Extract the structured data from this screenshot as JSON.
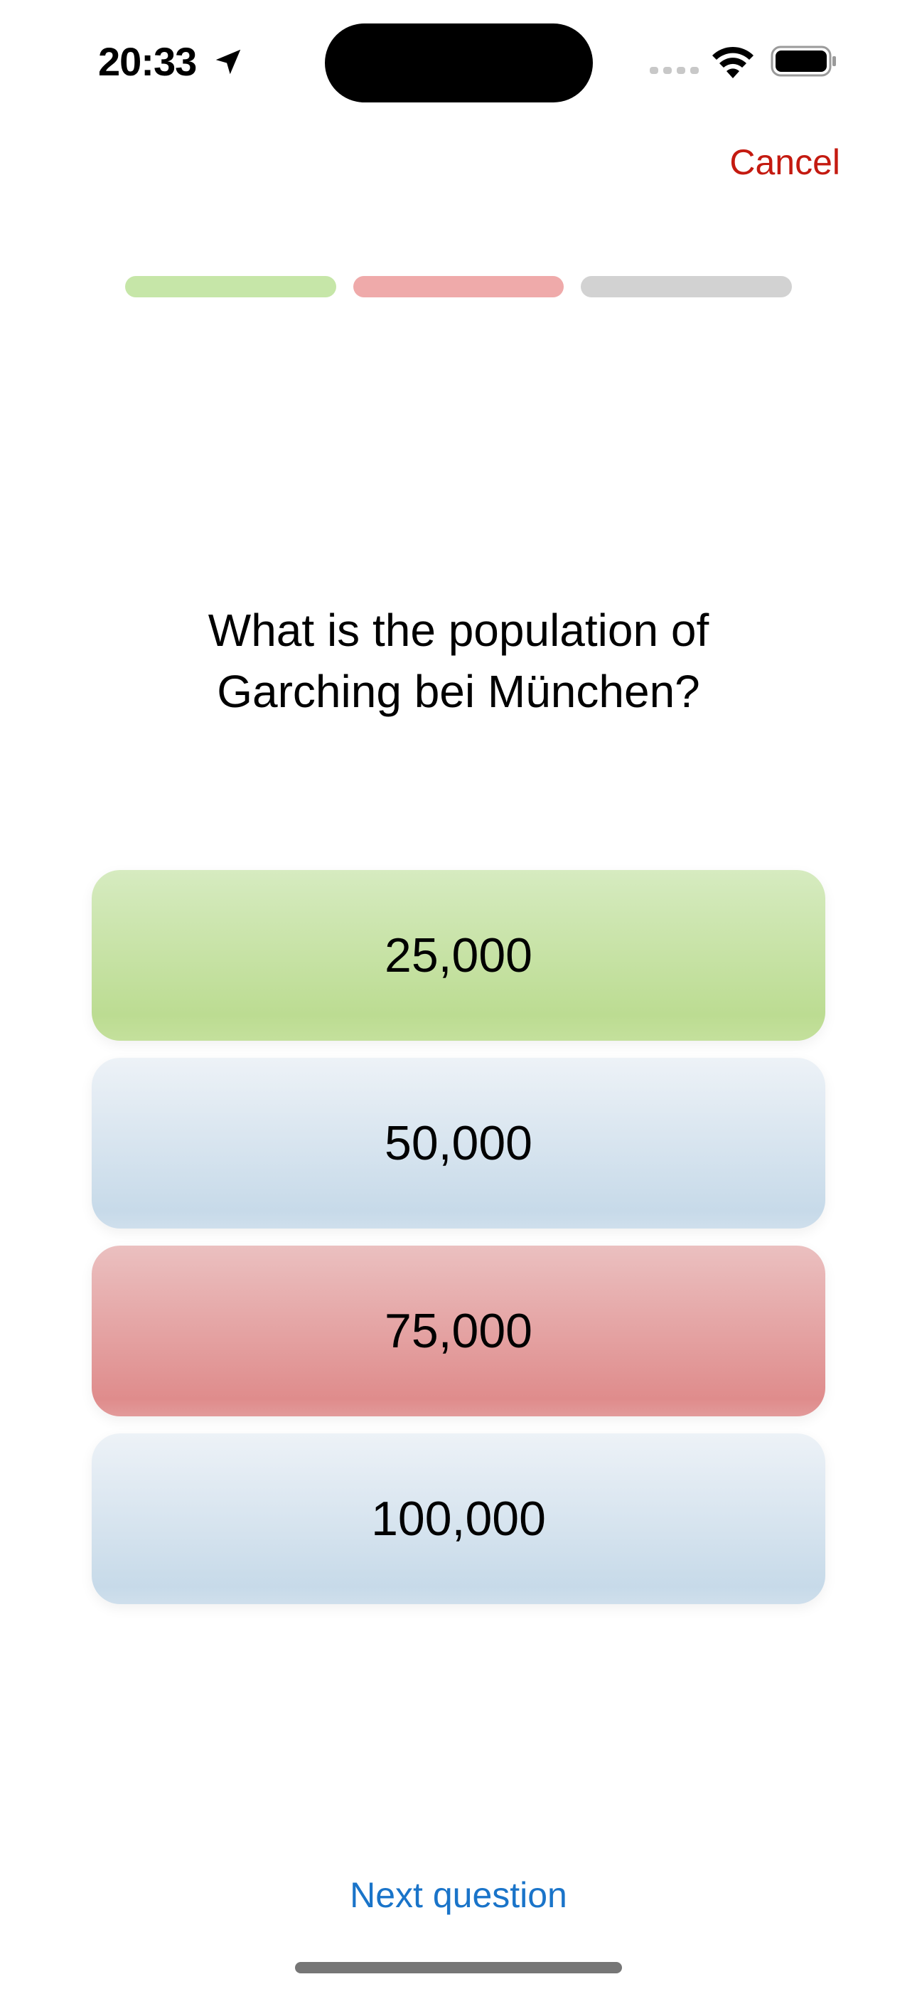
{
  "status_bar": {
    "time": "20:33",
    "icons": [
      "location-arrow-icon",
      "cellular-signal-icon",
      "wifi-icon",
      "battery-icon"
    ]
  },
  "header": {
    "cancel_label": "Cancel",
    "cancel_color": "#c41a10"
  },
  "progress": {
    "segments": [
      {
        "state": "correct",
        "color": "#c6e6a8"
      },
      {
        "state": "wrong",
        "color": "#efaaaa"
      },
      {
        "state": "pending",
        "color": "#d2d2d2"
      }
    ]
  },
  "question": {
    "text": "What is the population of\nGarching bei München?"
  },
  "answers": [
    {
      "label": "25,000",
      "state": "correct"
    },
    {
      "label": "50,000",
      "state": "neutral"
    },
    {
      "label": "75,000",
      "state": "wrong"
    },
    {
      "label": "100,000",
      "state": "neutral"
    }
  ],
  "footer": {
    "next_label": "Next question",
    "next_color": "#1a74c9"
  }
}
